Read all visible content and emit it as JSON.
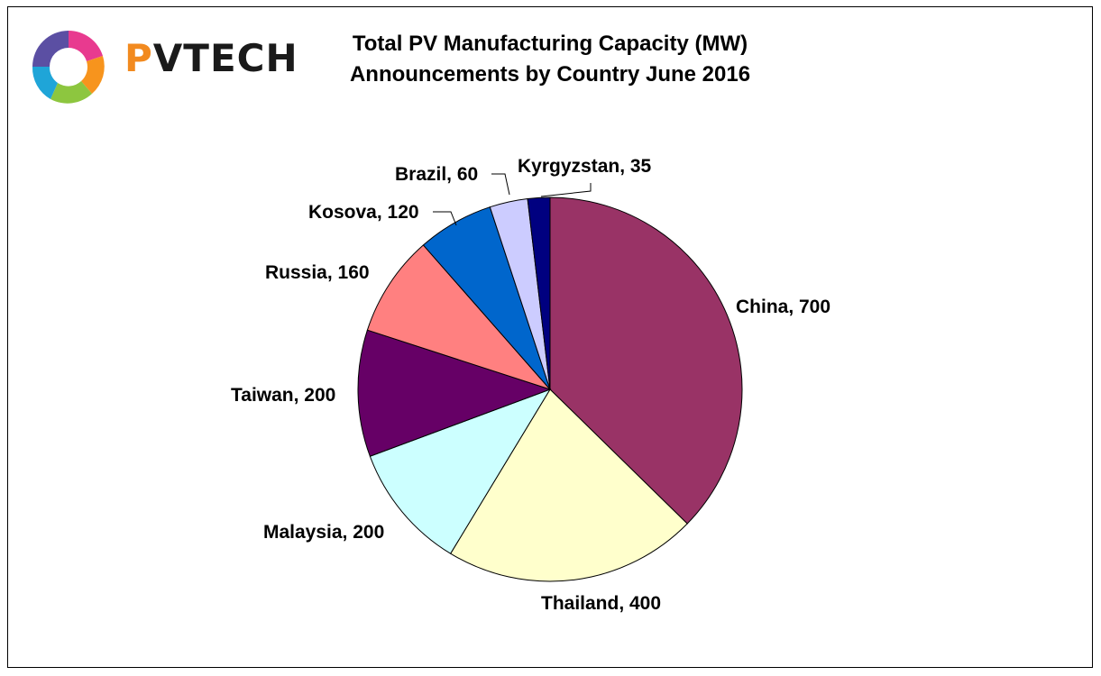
{
  "logo": {
    "text_p": "P",
    "text_rest": "VTECH"
  },
  "title_line1": "Total PV Manufacturing Capacity (MW)",
  "title_line2": "Announcements by Country June 2016",
  "chart_data": {
    "type": "pie",
    "title": "Total PV Manufacturing Capacity (MW) Announcements by Country June 2016",
    "categories": [
      "China",
      "Thailand",
      "Malaysia",
      "Taiwan",
      "Russia",
      "Kosova",
      "Brazil",
      "Kyrgyzstan"
    ],
    "values": [
      700,
      400,
      200,
      200,
      160,
      120,
      60,
      35
    ],
    "labels": [
      "China, 700",
      "Thailand, 400",
      "Malaysia, 200",
      "Taiwan, 200",
      "Russia, 160",
      "Kosova, 120",
      "Brazil, 60",
      "Kyrgyzstan, 35"
    ],
    "colors": [
      "#993366",
      "#ffffcc",
      "#ccffff",
      "#660066",
      "#ff8080",
      "#0066cc",
      "#ccccff",
      "#000080"
    ],
    "start_angle": "top, clockwise"
  }
}
